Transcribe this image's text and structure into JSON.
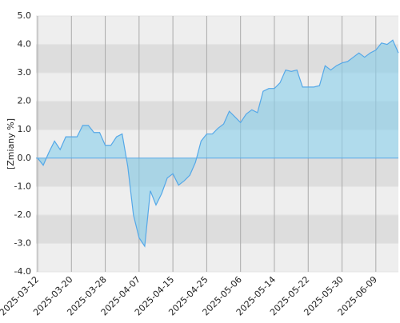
{
  "chart_data": {
    "type": "area",
    "y_label": "[Zmiany %]",
    "categories": [
      "2025-03-12",
      null,
      null,
      null,
      null,
      null,
      "2025-03-20",
      null,
      null,
      null,
      null,
      null,
      "2025-03-28",
      null,
      null,
      null,
      null,
      null,
      "2025-04-07",
      null,
      null,
      null,
      null,
      null,
      "2025-04-15",
      null,
      null,
      null,
      null,
      null,
      "2025-04-25",
      null,
      null,
      null,
      null,
      null,
      "2025-05-06",
      null,
      null,
      null,
      null,
      null,
      "2025-05-14",
      null,
      null,
      null,
      null,
      null,
      "2025-05-22",
      null,
      null,
      null,
      null,
      null,
      "2025-05-30",
      null,
      null,
      null,
      null,
      null,
      "2025-06-09",
      null,
      null,
      null,
      null
    ],
    "values": [
      0.0,
      -0.25,
      0.2,
      0.6,
      0.3,
      0.75,
      0.75,
      0.75,
      1.15,
      1.15,
      0.9,
      0.9,
      0.45,
      0.45,
      0.75,
      0.85,
      -0.3,
      -2.0,
      -2.8,
      -3.1,
      -1.15,
      -1.65,
      -1.25,
      -0.7,
      -0.55,
      -0.95,
      -0.8,
      -0.6,
      -0.15,
      0.6,
      0.85,
      0.85,
      1.05,
      1.2,
      1.65,
      1.45,
      1.25,
      1.55,
      1.7,
      1.6,
      2.35,
      2.45,
      2.45,
      2.65,
      3.1,
      3.05,
      3.1,
      2.5,
      2.5,
      2.5,
      2.55,
      3.25,
      3.1,
      3.25,
      3.35,
      3.4,
      3.55,
      3.7,
      3.55,
      3.7,
      3.8,
      4.05,
      4.0,
      4.15,
      3.7
    ],
    "color": "#55a8e8",
    "ylim": [
      -4,
      5
    ],
    "yticks": [
      {
        "value": -4,
        "label": "-4.0"
      },
      {
        "value": -3,
        "label": "-3.0"
      },
      {
        "value": -2,
        "label": "-2.0"
      },
      {
        "value": -1,
        "label": "-1.0"
      },
      {
        "value": 0,
        "label": "0.0"
      },
      {
        "value": 1,
        "label": "1.0"
      },
      {
        "value": 2,
        "label": "2.0"
      },
      {
        "value": 3,
        "label": "3.0"
      },
      {
        "value": 4,
        "label": "4.0"
      },
      {
        "value": 5,
        "label": "5.0"
      }
    ],
    "grid": true
  }
}
